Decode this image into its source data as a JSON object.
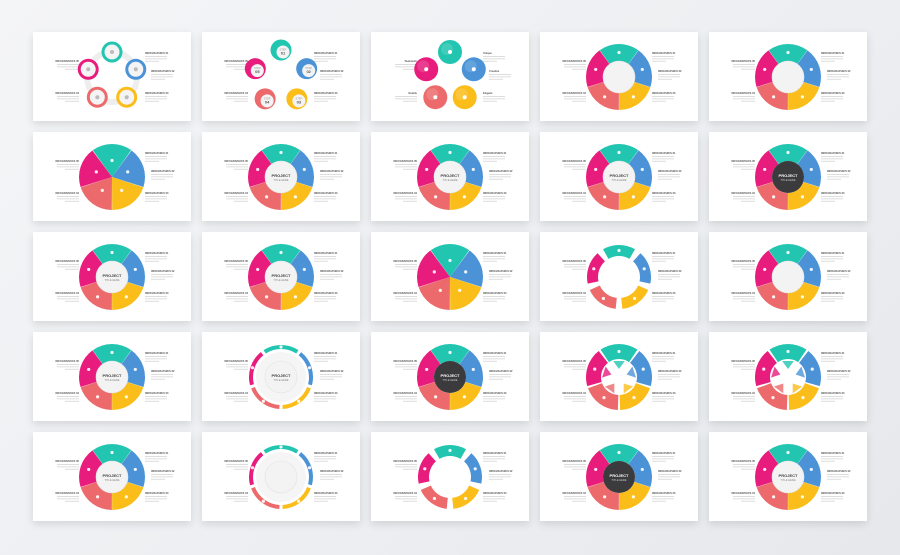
{
  "colors": {
    "teal": "#22c5b0",
    "blue": "#4b93d6",
    "yellow": "#fbbd1a",
    "salmon": "#ec6a6c",
    "pink": "#e81c7c",
    "dark": "#3b3b3d"
  },
  "default_labels": [
    "INFOGRAPHICS 01",
    "INFOGRAPHICS 02",
    "INFOGRAPHICS 03",
    "INFOGRAPHICS 04",
    "INFOGRAPHICS 05"
  ],
  "center_text": {
    "title": "PROJECT",
    "subtitle": "TITLE HERE"
  },
  "step_word": "STEP",
  "slides": [
    {
      "type": "chain",
      "icons": [
        "money-icon",
        "network-icon",
        "handshake-icon",
        "bulb-icon",
        "chart-icon"
      ]
    },
    {
      "type": "steps",
      "numbers": [
        "01",
        "02",
        "03",
        "04",
        "05"
      ]
    },
    {
      "type": "circles",
      "labels": [
        "Unique",
        "Creative",
        "Elegant",
        "Details",
        "Teamwork"
      ]
    },
    {
      "type": "ring"
    },
    {
      "type": "ring"
    },
    {
      "type": "pie"
    },
    {
      "type": "ring",
      "center": true
    },
    {
      "type": "ring",
      "center": true
    },
    {
      "type": "ring",
      "center": true
    },
    {
      "type": "dark",
      "center": true
    },
    {
      "type": "ring",
      "center": true
    },
    {
      "type": "ring",
      "center": true
    },
    {
      "type": "pie"
    },
    {
      "type": "arrows"
    },
    {
      "type": "ring"
    },
    {
      "type": "ring",
      "center": true
    },
    {
      "type": "thin",
      "center": true
    },
    {
      "type": "dark",
      "center": true
    },
    {
      "type": "star"
    },
    {
      "type": "star"
    },
    {
      "type": "ring",
      "center": true
    },
    {
      "type": "thin"
    },
    {
      "type": "arrows"
    },
    {
      "type": "dark",
      "center": true
    },
    {
      "type": "ring",
      "center": true
    }
  ]
}
